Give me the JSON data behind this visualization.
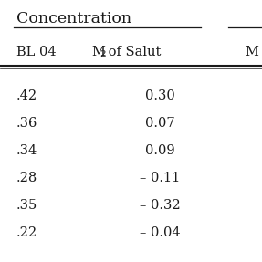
{
  "header_top": "Concentration",
  "col1_header": "BL 04",
  "col2_header_parts": [
    "M",
    "2",
    " of Salut"
  ],
  "col3_header": "M",
  "col1_values": [
    ".42",
    ".36",
    ".34",
    ".28",
    ".35",
    ".22"
  ],
  "col2_values": [
    "0.30",
    "0.07",
    "0.09",
    "– 0.11",
    "– 0.32",
    "– 0.04"
  ],
  "bg_color": "#ffffff",
  "text_color": "#1a1a1a",
  "font_size": 10.5,
  "header_font_size": 12.5,
  "fig_width": 2.87,
  "fig_height": 2.87,
  "dpi": 100
}
